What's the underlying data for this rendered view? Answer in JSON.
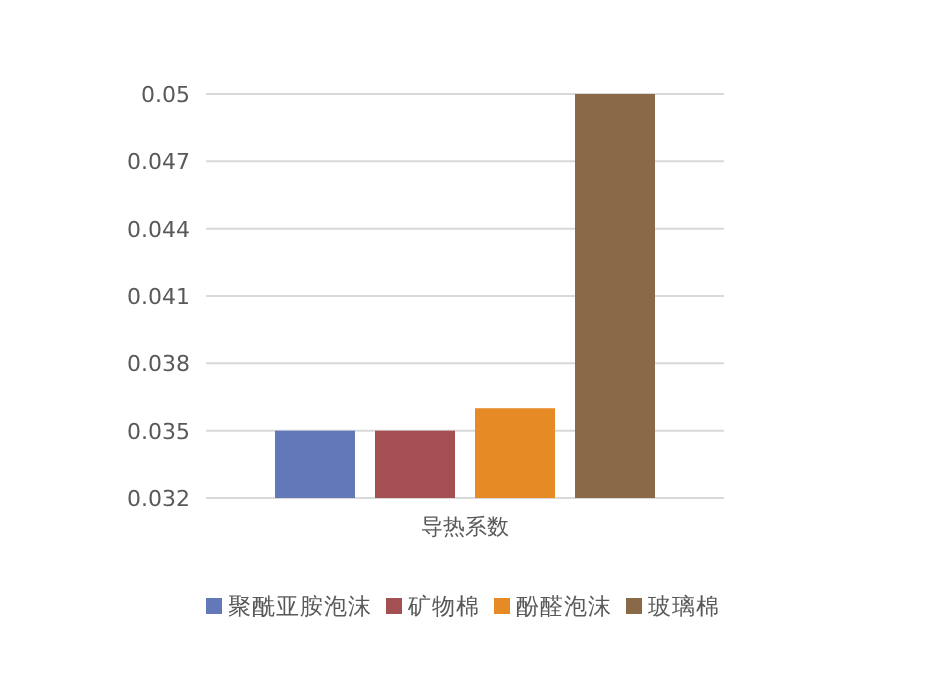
{
  "chart_data": {
    "type": "bar",
    "categories": [
      "导热系数"
    ],
    "series": [
      {
        "name": "聚酰亚胺泡沫",
        "color": "#6278b9",
        "values": [
          0.035
        ]
      },
      {
        "name": "矿物棉",
        "color": "#a44f51",
        "values": [
          0.035
        ]
      },
      {
        "name": "酚醛泡沫",
        "color": "#e68a26",
        "values": [
          0.036
        ]
      },
      {
        "name": "玻璃棉",
        "color": "#8a6949",
        "values": [
          0.05
        ]
      }
    ],
    "ylim": [
      0.032,
      0.05
    ],
    "yticks": [
      0.032,
      0.035,
      0.038,
      0.041,
      0.044,
      0.047,
      0.05
    ],
    "grid": "y",
    "legend": "bottom"
  }
}
